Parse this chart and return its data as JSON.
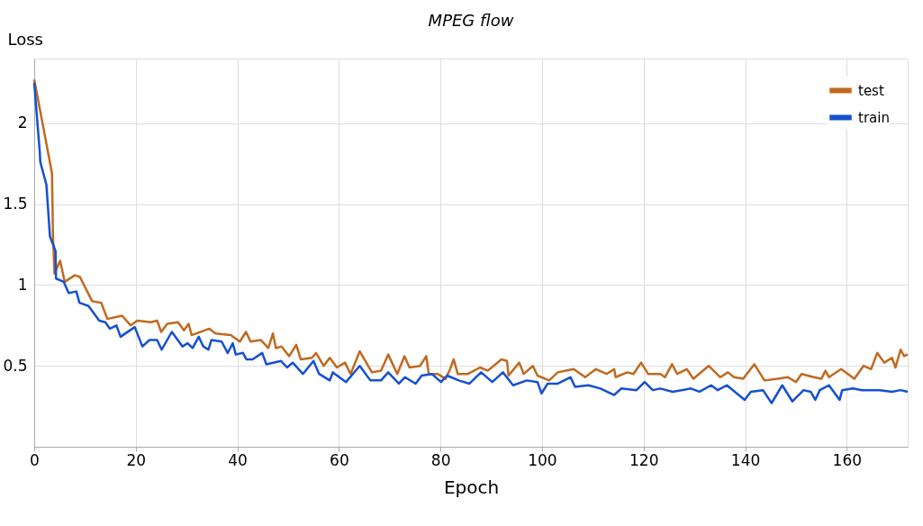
{
  "chart_data": {
    "type": "line",
    "title": "MPEG flow",
    "xlabel": "Epoch",
    "ylabel": "Loss",
    "xlim": [
      0,
      172
    ],
    "ylim": [
      0,
      2.4
    ],
    "xticks": [
      0,
      20,
      40,
      60,
      80,
      100,
      120,
      140,
      160
    ],
    "yticks": [
      0.5,
      1,
      1.5,
      2
    ],
    "grid": true,
    "legend": "top right",
    "line_style": "solid",
    "marker": "none",
    "series": [
      {
        "name": "test",
        "color": "#c0691f",
        "x": [
          0,
          1.7,
          3.5,
          3.7,
          4,
          5.1,
          6,
          8,
          9,
          11.4,
          13.2,
          14.4,
          17.3,
          19,
          20.3,
          23,
          24.2,
          25,
          26.2,
          28.3,
          29.5,
          30.4,
          31,
          34.5,
          35.7,
          38.7,
          40.5,
          41.7,
          42.6,
          44.6,
          46.1,
          47,
          47.6,
          48.7,
          50.2,
          51.6,
          52.5,
          54.7,
          55.5,
          57,
          58.2,
          59.6,
          61.2,
          62.3,
          64.1,
          66.5,
          68.3,
          69.7,
          71.5,
          72.9,
          73.9,
          76,
          77.2,
          77.7,
          79.5,
          81,
          81.9,
          82.6,
          83.4,
          85.4,
          87.8,
          89.3,
          92,
          93.1,
          93.4,
          95.5,
          96.4,
          98.2,
          99.1,
          101.4,
          103.1,
          106.2,
          108.5,
          110.6,
          112.7,
          114.2,
          114.5,
          116.8,
          118,
          119.5,
          120.9,
          123.3,
          124.2,
          125.6,
          126.6,
          128.5,
          129.8,
          132.8,
          135.1,
          136.6,
          137.8,
          139.6,
          141.8,
          143.8,
          146.4,
          148.4,
          150,
          151.1,
          153.5,
          155,
          155.8,
          156.5,
          158.9,
          161.5,
          163.3,
          164.8,
          166,
          167.4,
          168.9,
          169.6,
          170.6,
          171.3,
          172
        ],
        "values": [
          2.27,
          1.99,
          1.69,
          1.3,
          1.07,
          1.15,
          1.02,
          1.06,
          1.05,
          0.9,
          0.89,
          0.79,
          0.81,
          0.75,
          0.78,
          0.77,
          0.78,
          0.71,
          0.76,
          0.77,
          0.72,
          0.76,
          0.69,
          0.73,
          0.7,
          0.69,
          0.65,
          0.71,
          0.65,
          0.66,
          0.61,
          0.7,
          0.61,
          0.62,
          0.56,
          0.63,
          0.54,
          0.55,
          0.58,
          0.5,
          0.55,
          0.49,
          0.52,
          0.45,
          0.59,
          0.46,
          0.47,
          0.57,
          0.45,
          0.56,
          0.49,
          0.5,
          0.56,
          0.45,
          0.45,
          0.42,
          0.48,
          0.54,
          0.45,
          0.45,
          0.49,
          0.47,
          0.54,
          0.53,
          0.44,
          0.52,
          0.45,
          0.5,
          0.44,
          0.41,
          0.46,
          0.48,
          0.43,
          0.48,
          0.45,
          0.48,
          0.43,
          0.46,
          0.45,
          0.52,
          0.45,
          0.45,
          0.43,
          0.51,
          0.45,
          0.48,
          0.42,
          0.5,
          0.43,
          0.46,
          0.43,
          0.42,
          0.51,
          0.41,
          0.42,
          0.43,
          0.4,
          0.45,
          0.43,
          0.42,
          0.47,
          0.43,
          0.48,
          0.42,
          0.5,
          0.48,
          0.58,
          0.52,
          0.55,
          0.49,
          0.6,
          0.56,
          0.57
        ]
      },
      {
        "name": "train",
        "color": "#1550d0",
        "x": [
          0,
          1.1,
          1.2,
          2.4,
          3.1,
          4.2,
          4.3,
          5.8,
          6.8,
          8.3,
          8.9,
          10.7,
          12.8,
          14,
          14.9,
          16.2,
          17,
          19.8,
          21.3,
          22.7,
          24.2,
          25.1,
          27.1,
          29.2,
          30.2,
          31.2,
          32.4,
          33.3,
          34.3,
          34.9,
          36.9,
          38.1,
          39.1,
          39.7,
          41.1,
          41.8,
          43,
          44.9,
          45.7,
          48.6,
          49.8,
          50.9,
          52.9,
          55,
          56.1,
          58.2,
          58.8,
          61.4,
          64.1,
          66.2,
          68.3,
          69.7,
          71.8,
          73,
          75.1,
          76.3,
          78.3,
          80.1,
          81.3,
          83.6,
          85.7,
          88,
          90.2,
          92.3,
          94.3,
          97,
          99.1,
          99.9,
          101.1,
          103.1,
          105.6,
          106.5,
          109.1,
          111.5,
          114.2,
          115.6,
          118.6,
          120.2,
          121.8,
          123.3,
          125.7,
          129.3,
          131,
          133.3,
          134.6,
          136.4,
          139.9,
          141.1,
          143.5,
          145.2,
          147.3,
          149.3,
          151.5,
          152.9,
          153.8,
          154.7,
          156.5,
          158.6,
          159.1,
          161.2,
          163,
          166.5,
          168.9,
          170.6,
          172
        ],
        "values": [
          2.25,
          1.82,
          1.76,
          1.62,
          1.3,
          1.21,
          1.04,
          1.02,
          0.95,
          0.96,
          0.89,
          0.87,
          0.78,
          0.77,
          0.73,
          0.75,
          0.68,
          0.74,
          0.62,
          0.66,
          0.66,
          0.6,
          0.71,
          0.62,
          0.64,
          0.61,
          0.68,
          0.62,
          0.6,
          0.66,
          0.65,
          0.58,
          0.64,
          0.57,
          0.58,
          0.54,
          0.54,
          0.58,
          0.51,
          0.53,
          0.49,
          0.52,
          0.45,
          0.53,
          0.45,
          0.41,
          0.46,
          0.4,
          0.5,
          0.41,
          0.41,
          0.46,
          0.39,
          0.43,
          0.39,
          0.44,
          0.45,
          0.4,
          0.44,
          0.41,
          0.39,
          0.46,
          0.4,
          0.46,
          0.38,
          0.41,
          0.4,
          0.33,
          0.39,
          0.39,
          0.43,
          0.37,
          0.38,
          0.36,
          0.32,
          0.36,
          0.35,
          0.4,
          0.35,
          0.36,
          0.34,
          0.36,
          0.34,
          0.38,
          0.35,
          0.38,
          0.29,
          0.34,
          0.35,
          0.27,
          0.38,
          0.28,
          0.35,
          0.34,
          0.29,
          0.35,
          0.38,
          0.29,
          0.35,
          0.36,
          0.35,
          0.35,
          0.34,
          0.35,
          0.34
        ]
      }
    ]
  }
}
